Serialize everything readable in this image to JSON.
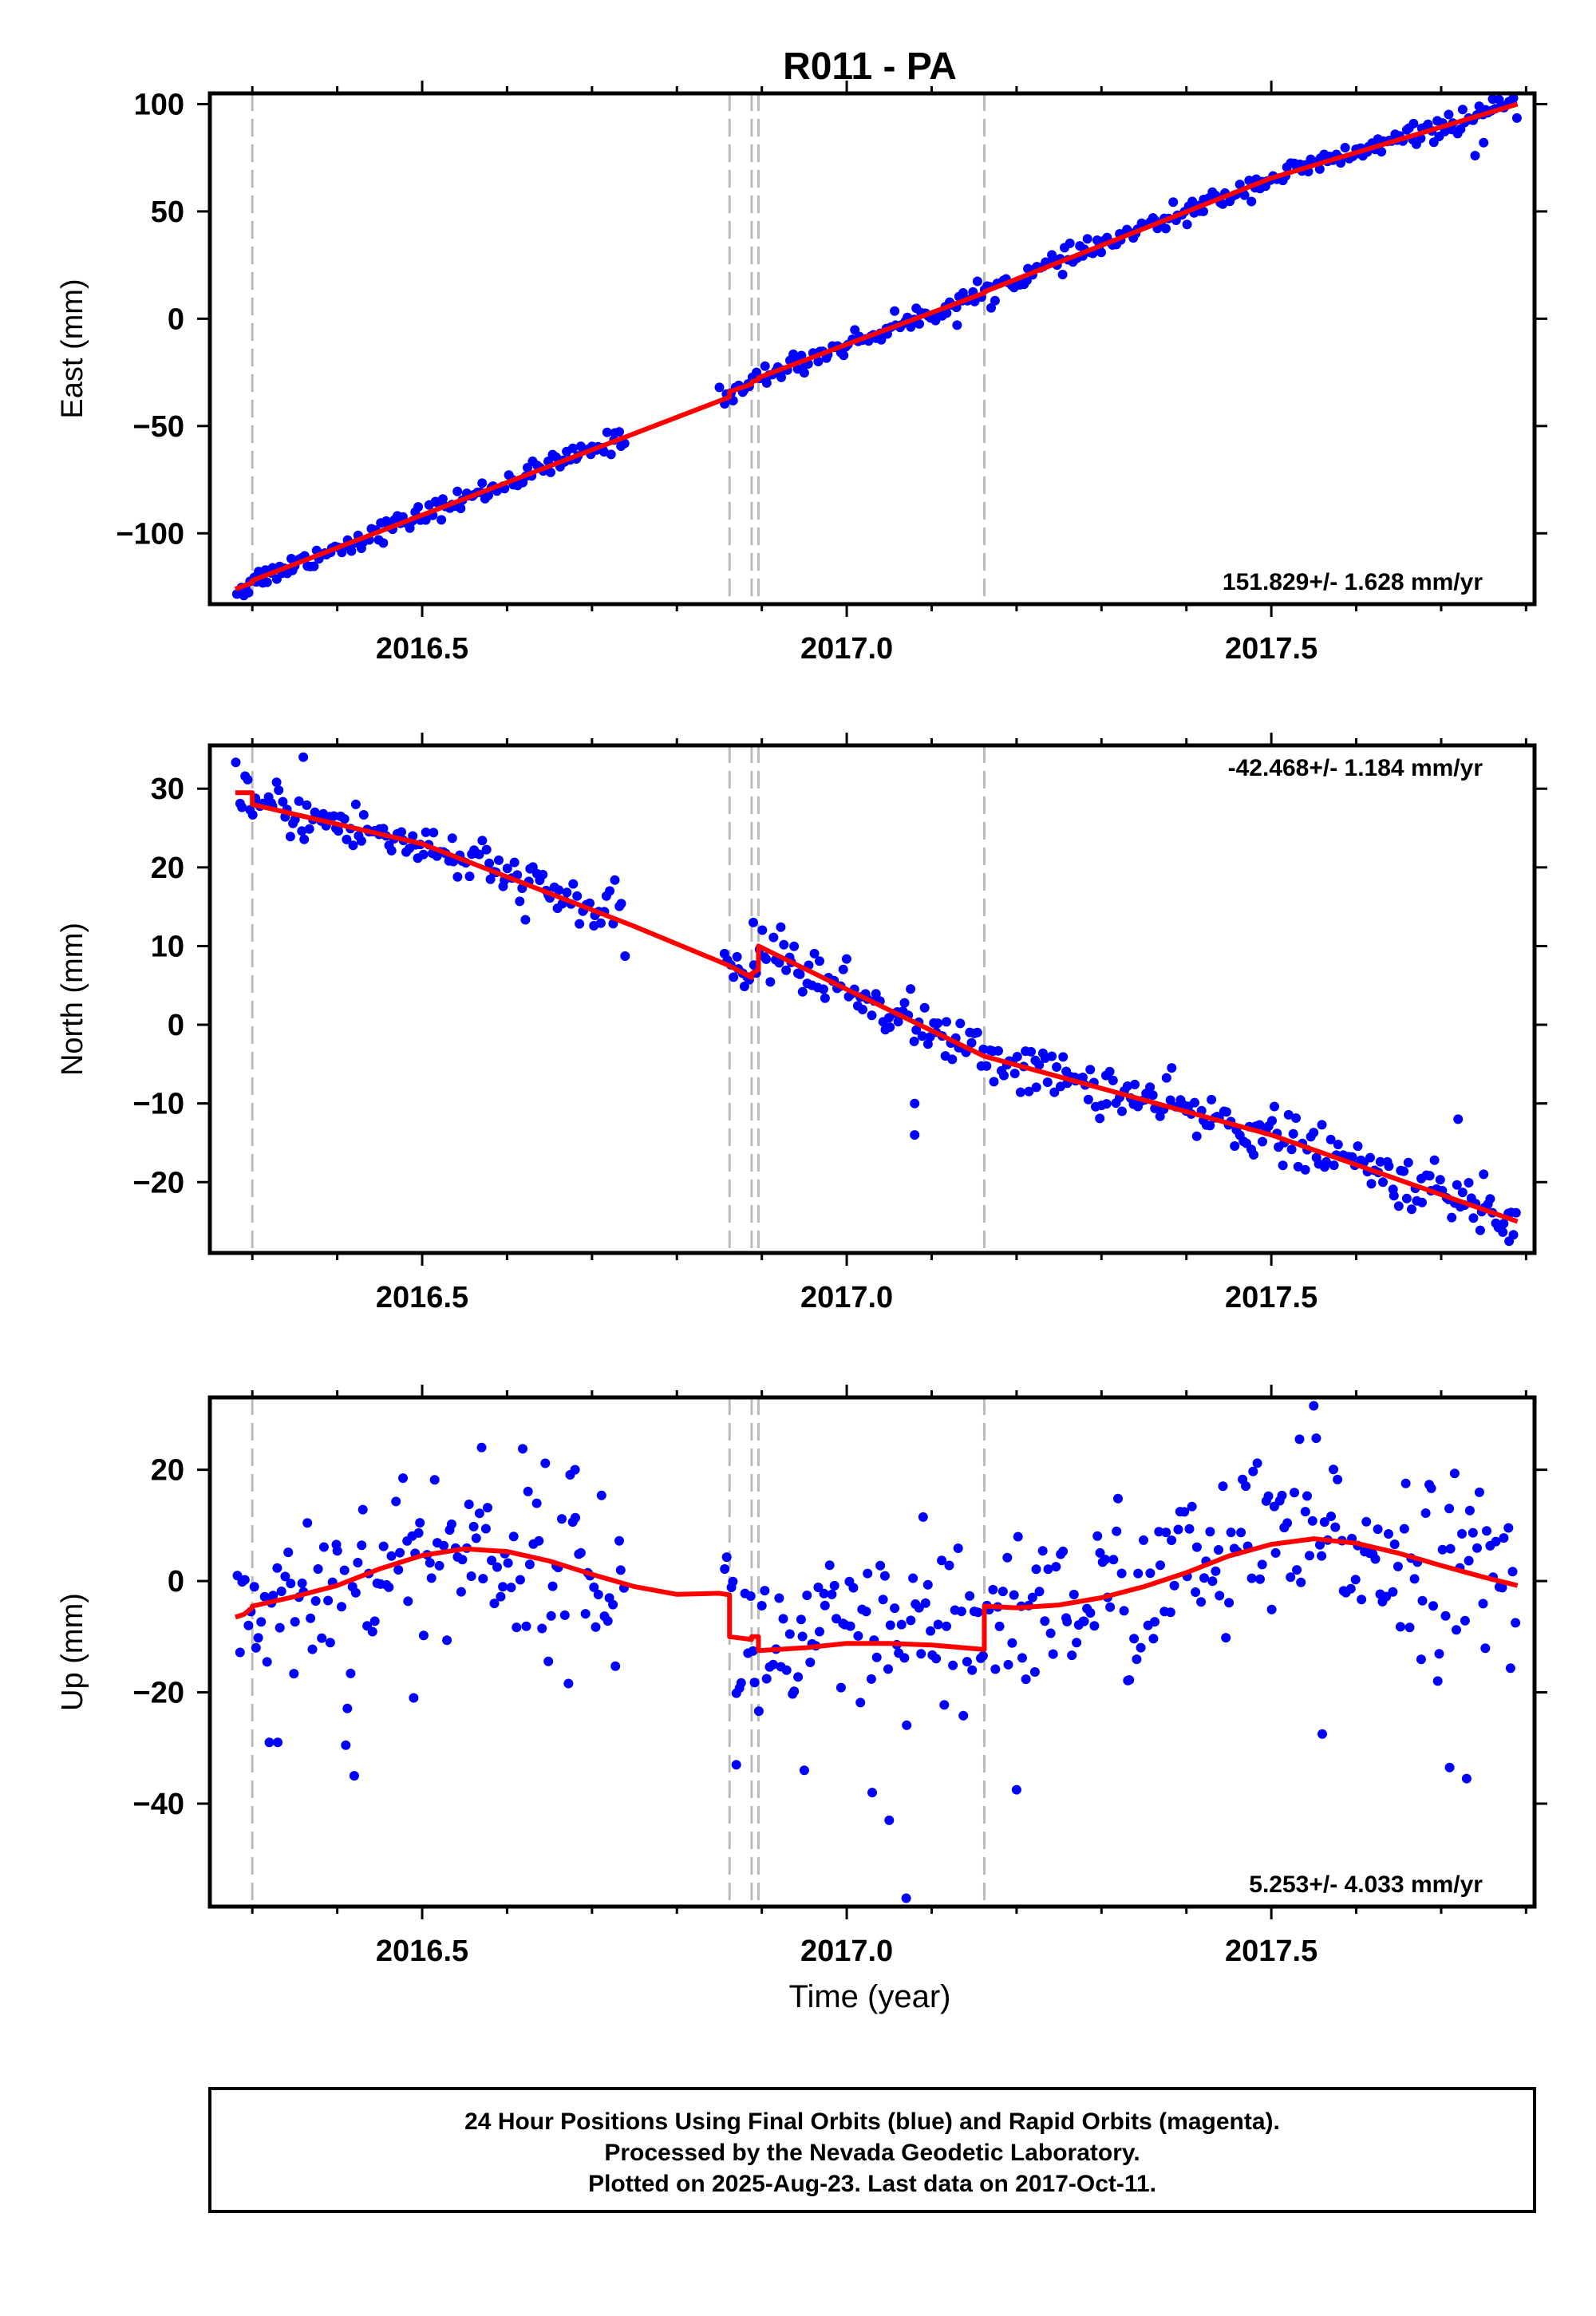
{
  "title": "R011 - PA",
  "colors": {
    "points": "#0000ff",
    "model": "#ff0000",
    "events": "#bbbbbb",
    "frame": "#000000"
  },
  "xlabel": "Time (year)",
  "footer": {
    "line1": "24 Hour Positions Using Final Orbits (blue) and Rapid Orbits (magenta).",
    "line2": "Processed by the Nevada Geodetic Laboratory.",
    "line3": "Plotted on 2025-Aug-23. Last data on 2017-Oct-11."
  },
  "chart_data": [
    {
      "type": "scatter",
      "id": "east",
      "ylabel": "East (mm)",
      "xlim": [
        2016.25,
        2017.81
      ],
      "ylim": [
        -133,
        105
      ],
      "xticks": [
        2016.5,
        2017.0,
        2017.5
      ],
      "xtick_labels": [
        "2016.5",
        "2017.0",
        "2017.5"
      ],
      "yticks": [
        -100,
        -50,
        0,
        50,
        100
      ],
      "ytick_labels": [
        "−100",
        "−50",
        "0",
        "50",
        "100"
      ],
      "rate_text": "151.829+/- 1.628 mm/yr",
      "rate_position": "bottom-right",
      "event_lines": [
        2016.3,
        2016.862,
        2016.888,
        2016.896,
        2017.162
      ],
      "segments": [
        [
          [
            2016.28,
            -126
          ],
          [
            2016.3,
            -123
          ],
          [
            2016.3,
            -122
          ],
          [
            2016.5,
            -91.5
          ],
          [
            2016.75,
            -53.5
          ],
          [
            2016.862,
            -36.5
          ],
          [
            2016.862,
            -34
          ],
          [
            2016.888,
            -30.5
          ],
          [
            2016.888,
            -29.5
          ],
          [
            2016.896,
            -28.3
          ],
          [
            2016.896,
            -27.5
          ],
          [
            2017.0,
            -12
          ],
          [
            2017.162,
            12
          ],
          [
            2017.162,
            12.5
          ],
          [
            2017.5,
            65.5
          ],
          [
            2017.79,
            100
          ]
        ]
      ],
      "points": {
        "x_ranges": [
          [
            2016.28,
            2016.74
          ],
          [
            2016.855,
            2017.79
          ]
        ],
        "count": 420,
        "noise": 2.5,
        "outliers": [
          [
            2016.29,
            -129
          ],
          [
            2016.85,
            -32
          ],
          [
            2017.74,
            76
          ],
          [
            2017.75,
            82
          ],
          [
            2017.13,
            -3
          ],
          [
            2017.42,
            50
          ]
        ]
      }
    },
    {
      "type": "scatter",
      "id": "north",
      "ylabel": "North (mm)",
      "xlim": [
        2016.25,
        2017.81
      ],
      "ylim": [
        -29,
        35.5
      ],
      "xticks": [
        2016.5,
        2017.0,
        2017.5
      ],
      "xtick_labels": [
        "2016.5",
        "2017.0",
        "2017.5"
      ],
      "yticks": [
        -20,
        -10,
        0,
        10,
        20,
        30
      ],
      "ytick_labels": [
        "−20",
        "−10",
        "0",
        "10",
        "20",
        "30"
      ],
      "rate_text": "-42.468+/- 1.184 mm/yr",
      "rate_position": "top-right",
      "event_lines": [
        2016.3,
        2016.862,
        2016.888,
        2016.896,
        2017.162
      ],
      "segments": [
        [
          [
            2016.28,
            29.5
          ],
          [
            2016.3,
            29.5
          ],
          [
            2016.3,
            28
          ],
          [
            2016.5,
            23
          ],
          [
            2016.75,
            12.5
          ],
          [
            2016.862,
            7.5
          ],
          [
            2016.888,
            6
          ],
          [
            2016.888,
            6.5
          ],
          [
            2016.896,
            7
          ],
          [
            2016.896,
            10
          ],
          [
            2017.0,
            4.5
          ],
          [
            2017.162,
            -4
          ],
          [
            2017.5,
            -14
          ],
          [
            2017.79,
            -25
          ]
        ]
      ],
      "points": {
        "x_ranges": [
          [
            2016.28,
            2016.74
          ],
          [
            2016.855,
            2017.79
          ]
        ],
        "count": 420,
        "noise": 1.6,
        "outliers": [
          [
            2016.36,
            34
          ],
          [
            2017.08,
            -14
          ],
          [
            2017.08,
            -10
          ],
          [
            2016.89,
            13
          ],
          [
            2017.72,
            -12
          ],
          [
            2017.75,
            -19
          ],
          [
            2017.78,
            -27.5
          ]
        ]
      }
    },
    {
      "type": "scatter",
      "id": "up",
      "ylabel": "Up (mm)",
      "xlim": [
        2016.25,
        2017.81
      ],
      "ylim": [
        -58.5,
        33
      ],
      "xticks": [
        2016.5,
        2017.0,
        2017.5
      ],
      "xtick_labels": [
        "2016.5",
        "2017.0",
        "2017.5"
      ],
      "yticks": [
        -40,
        -20,
        0,
        20
      ],
      "ytick_labels": [
        "−40",
        "−20",
        "0",
        "20"
      ],
      "rate_text": "5.253+/- 4.033 mm/yr",
      "rate_position": "bottom-right",
      "event_lines": [
        2016.3,
        2016.862,
        2016.888,
        2016.896,
        2017.162
      ],
      "segments": [
        [
          [
            2016.28,
            -6.5
          ],
          [
            2016.29,
            -6
          ],
          [
            2016.3,
            -4.8
          ],
          [
            2016.3,
            -4.5
          ],
          [
            2016.35,
            -2.8
          ],
          [
            2016.4,
            -0.8
          ],
          [
            2016.45,
            2.2
          ],
          [
            2016.5,
            4.6
          ],
          [
            2016.55,
            5.8
          ],
          [
            2016.6,
            5.3
          ],
          [
            2016.65,
            3.6
          ],
          [
            2016.7,
            1.2
          ],
          [
            2016.75,
            -1.0
          ],
          [
            2016.8,
            -2.4
          ],
          [
            2016.85,
            -2.2
          ],
          [
            2016.862,
            -2.5
          ],
          [
            2016.862,
            -10
          ],
          [
            2016.888,
            -10.5
          ],
          [
            2016.888,
            -10
          ],
          [
            2016.896,
            -10
          ],
          [
            2016.896,
            -12.5
          ],
          [
            2016.95,
            -12
          ],
          [
            2017.0,
            -11.2
          ],
          [
            2017.05,
            -11.2
          ],
          [
            2017.1,
            -11.5
          ],
          [
            2017.162,
            -12.3
          ],
          [
            2017.162,
            -4.5
          ],
          [
            2017.2,
            -4.8
          ],
          [
            2017.25,
            -4.3
          ],
          [
            2017.3,
            -3
          ],
          [
            2017.35,
            -1
          ],
          [
            2017.4,
            1.5
          ],
          [
            2017.45,
            4.5
          ],
          [
            2017.5,
            6.6
          ],
          [
            2017.55,
            7.6
          ],
          [
            2017.6,
            6.8
          ],
          [
            2017.65,
            5.0
          ],
          [
            2017.7,
            2.8
          ],
          [
            2017.75,
            0.7
          ],
          [
            2017.79,
            -0.8
          ]
        ]
      ],
      "points": {
        "x_ranges": [
          [
            2016.28,
            2016.74
          ],
          [
            2016.855,
            2017.79
          ]
        ],
        "count": 420,
        "noise": 8,
        "outliers": [
          [
            2016.32,
            -29
          ],
          [
            2016.33,
            -29
          ],
          [
            2016.41,
            -29.5
          ],
          [
            2016.42,
            -35
          ],
          [
            2016.49,
            -21
          ],
          [
            2016.87,
            -33
          ],
          [
            2016.95,
            -34
          ],
          [
            2017.03,
            -38
          ],
          [
            2017.07,
            -57
          ],
          [
            2017.05,
            -43
          ],
          [
            2017.2,
            -37.5
          ],
          [
            2017.55,
            31.5
          ],
          [
            2017.56,
            -27.5
          ],
          [
            2017.71,
            -33.5
          ],
          [
            2017.73,
            -35.5
          ],
          [
            2016.57,
            24
          ],
          [
            2017.09,
            11.5
          ],
          [
            2016.68,
            20
          ]
        ]
      }
    }
  ]
}
